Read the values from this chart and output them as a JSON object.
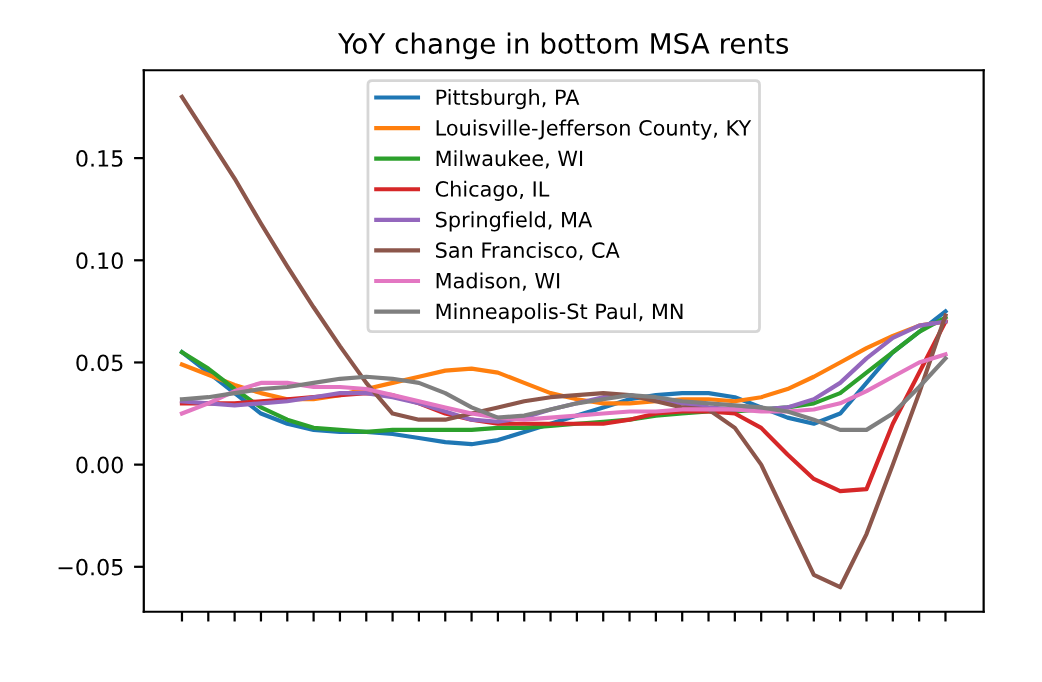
{
  "chart_data": {
    "type": "line",
    "title": "YoY change in bottom MSA rents",
    "categories": [
      null,
      null,
      null,
      null,
      null,
      null,
      null,
      null,
      null,
      null,
      null,
      null,
      null,
      null,
      null,
      null,
      null,
      null,
      null,
      null,
      null,
      null,
      null,
      null,
      null,
      null,
      null,
      null,
      null,
      null
    ],
    "series": [
      {
        "name": "Pittsburgh, PA",
        "color": "#1f77b4",
        "values": [
          0.055,
          0.045,
          0.035,
          0.025,
          0.02,
          0.017,
          0.016,
          0.016,
          0.015,
          0.013,
          0.011,
          0.01,
          0.012,
          0.016,
          0.02,
          0.024,
          0.028,
          0.032,
          0.034,
          0.035,
          0.035,
          0.033,
          0.028,
          0.023,
          0.02,
          0.025,
          0.04,
          0.055,
          0.065,
          0.075
        ]
      },
      {
        "name": "Louisville-Jefferson County, KY",
        "color": "#ff7f0e",
        "values": [
          0.049,
          0.044,
          0.039,
          0.035,
          0.032,
          0.032,
          0.034,
          0.037,
          0.04,
          0.043,
          0.046,
          0.047,
          0.045,
          0.04,
          0.035,
          0.032,
          0.03,
          0.03,
          0.031,
          0.032,
          0.032,
          0.031,
          0.033,
          0.037,
          0.043,
          0.05,
          0.057,
          0.063,
          0.068,
          0.07
        ]
      },
      {
        "name": "Milwaukee, WI",
        "color": "#2ca02c",
        "values": [
          0.055,
          0.047,
          0.037,
          0.028,
          0.022,
          0.018,
          0.017,
          0.016,
          0.017,
          0.017,
          0.017,
          0.017,
          0.018,
          0.018,
          0.019,
          0.02,
          0.021,
          0.022,
          0.024,
          0.025,
          0.026,
          0.026,
          0.027,
          0.028,
          0.03,
          0.035,
          0.045,
          0.055,
          0.065,
          0.072
        ]
      },
      {
        "name": "Chicago, IL",
        "color": "#d62728",
        "values": [
          0.03,
          0.03,
          0.03,
          0.031,
          0.032,
          0.033,
          0.034,
          0.035,
          0.034,
          0.03,
          0.025,
          0.022,
          0.02,
          0.02,
          0.02,
          0.02,
          0.02,
          0.022,
          0.025,
          0.026,
          0.026,
          0.025,
          0.018,
          0.005,
          -0.007,
          -0.013,
          -0.012,
          0.02,
          0.045,
          0.07
        ]
      },
      {
        "name": "Springfield, MA",
        "color": "#9467bd",
        "values": [
          0.031,
          0.03,
          0.029,
          0.03,
          0.031,
          0.033,
          0.035,
          0.035,
          0.033,
          0.03,
          0.026,
          0.022,
          0.021,
          0.023,
          0.027,
          0.03,
          0.033,
          0.034,
          0.032,
          0.03,
          0.028,
          0.027,
          0.027,
          0.028,
          0.032,
          0.04,
          0.052,
          0.062,
          0.068,
          0.07
        ]
      },
      {
        "name": "San Francisco, CA",
        "color": "#8c564b",
        "values": [
          0.18,
          0.16,
          0.14,
          0.118,
          0.097,
          0.077,
          0.058,
          0.04,
          0.025,
          0.022,
          0.022,
          0.025,
          0.028,
          0.031,
          0.033,
          0.034,
          0.035,
          0.034,
          0.031,
          0.028,
          0.027,
          0.018,
          0.0,
          -0.027,
          -0.054,
          -0.06,
          -0.034,
          0.0,
          0.035,
          0.073
        ]
      },
      {
        "name": "Madison, WI",
        "color": "#e377c2",
        "values": [
          0.025,
          0.03,
          0.036,
          0.04,
          0.04,
          0.038,
          0.038,
          0.037,
          0.034,
          0.031,
          0.028,
          0.025,
          0.023,
          0.022,
          0.023,
          0.024,
          0.025,
          0.026,
          0.026,
          0.027,
          0.027,
          0.027,
          0.026,
          0.026,
          0.027,
          0.03,
          0.036,
          0.043,
          0.05,
          0.054
        ]
      },
      {
        "name": "Minneapolis-St Paul, MN",
        "color": "#7f7f7f",
        "values": [
          0.032,
          0.033,
          0.035,
          0.037,
          0.038,
          0.04,
          0.042,
          0.043,
          0.042,
          0.04,
          0.035,
          0.028,
          0.023,
          0.024,
          0.027,
          0.03,
          0.032,
          0.034,
          0.033,
          0.031,
          0.03,
          0.029,
          0.028,
          0.026,
          0.022,
          0.017,
          0.017,
          0.025,
          0.038,
          0.052
        ]
      }
    ],
    "ylim": [
      -0.072,
      0.193
    ],
    "yticks": [
      {
        "value": -0.05,
        "label": "−0.05"
      },
      {
        "value": 0.0,
        "label": "0.00"
      },
      {
        "value": 0.05,
        "label": "0.05"
      },
      {
        "value": 0.1,
        "label": "0.10"
      },
      {
        "value": 0.15,
        "label": "0.15"
      }
    ],
    "legend": "top",
    "grid": false,
    "marker": "none",
    "line_style": "solid"
  }
}
